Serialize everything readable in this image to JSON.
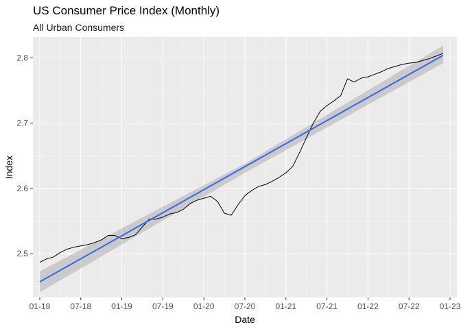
{
  "chart_data": {
    "type": "line",
    "title": "US Consumer Price Index (Monthly)",
    "subtitle": "All Urban Consumers",
    "xlabel": "Date",
    "ylabel": "Index",
    "x_ticks": [
      "01-18",
      "07-18",
      "01-19",
      "07-19",
      "01-20",
      "07-20",
      "01-21",
      "07-21",
      "01-22",
      "07-22",
      "01-23"
    ],
    "y_ticks": [
      "2.5",
      "2.6",
      "2.7",
      "2.8"
    ],
    "xlim": [
      "2017-12",
      "2023-02"
    ],
    "ylim": [
      2.433,
      2.832
    ],
    "grid": true,
    "background": "#EBEBEB",
    "series": [
      {
        "type": "line",
        "color": "#000000",
        "x": [
          "2018-01",
          "2018-02",
          "2018-03",
          "2018-04",
          "2018-05",
          "2018-06",
          "2018-07",
          "2018-08",
          "2018-09",
          "2018-10",
          "2018-11",
          "2018-12",
          "2019-01",
          "2019-02",
          "2019-03",
          "2019-04",
          "2019-05",
          "2019-06",
          "2019-07",
          "2019-08",
          "2019-09",
          "2019-10",
          "2019-11",
          "2019-12",
          "2020-01",
          "2020-02",
          "2020-03",
          "2020-04",
          "2020-05",
          "2020-06",
          "2020-07",
          "2020-08",
          "2020-09",
          "2020-10",
          "2020-11",
          "2020-12",
          "2021-01",
          "2021-02",
          "2021-03",
          "2021-04",
          "2021-05",
          "2021-06",
          "2021-07",
          "2021-08",
          "2021-09",
          "2021-10",
          "2021-11",
          "2021-12",
          "2022-01",
          "2022-02",
          "2022-03",
          "2022-04",
          "2022-05",
          "2022-06",
          "2022-07",
          "2022-08",
          "2022-09",
          "2022-10",
          "2022-11",
          "2022-12"
        ],
        "values": [
          2.487,
          2.492,
          2.495,
          2.502,
          2.507,
          2.51,
          2.512,
          2.514,
          2.517,
          2.521,
          2.528,
          2.528,
          2.523,
          2.525,
          2.529,
          2.541,
          2.553,
          2.553,
          2.556,
          2.561,
          2.563,
          2.568,
          2.577,
          2.582,
          2.585,
          2.588,
          2.58,
          2.562,
          2.559,
          2.575,
          2.589,
          2.597,
          2.603,
          2.606,
          2.611,
          2.617,
          2.624,
          2.634,
          2.655,
          2.678,
          2.7,
          2.718,
          2.727,
          2.734,
          2.742,
          2.768,
          2.763,
          2.769,
          2.771,
          2.775,
          2.779,
          2.784,
          2.787,
          2.79,
          2.792,
          2.793,
          2.796,
          2.799,
          2.803,
          2.807
        ]
      },
      {
        "type": "line",
        "color": "#3366FF",
        "x": [
          "2018-01",
          "2022-12"
        ],
        "values": [
          2.457,
          2.804
        ]
      },
      {
        "type": "band",
        "color": "#999999",
        "x": [
          "2018-01",
          "2020-07",
          "2022-12"
        ],
        "lower": [
          2.441,
          2.624,
          2.792
        ],
        "upper": [
          2.473,
          2.638,
          2.819
        ]
      }
    ]
  }
}
